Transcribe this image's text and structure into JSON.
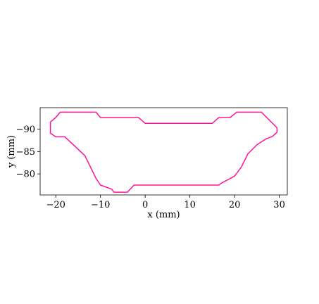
{
  "chart_data": {
    "type": "line",
    "title": "",
    "xlabel": "x (mm)",
    "ylabel": "y (mm)",
    "xlim": [
      -23.5,
      31.8
    ],
    "ylim": [
      -94.8,
      -75.3
    ],
    "y_inverted": true,
    "grid": false,
    "x_ticks": [
      -20,
      -10,
      0,
      10,
      20,
      30
    ],
    "x_tick_labels": [
      "−20",
      "−10",
      "0",
      "10",
      "20",
      "30"
    ],
    "y_ticks": [
      -90,
      -85,
      -80
    ],
    "y_tick_labels": [
      "−90",
      "−85",
      "−80"
    ],
    "series": [
      {
        "color": "#ff1493",
        "closed": true,
        "x": [
          -19.0,
          -11.0,
          -10.0,
          -1.5,
          0.0,
          15.0,
          16.5,
          19.0,
          20.5,
          26.0,
          29.5,
          29.5,
          28.5,
          27.0,
          25.0,
          23.0,
          21.5,
          20.0,
          17.0,
          16.5,
          -2.5,
          -4.0,
          -7.0,
          -7.5,
          -10.0,
          -11.0,
          -13.5,
          -18.0,
          -20.0,
          -21.2,
          -21.2,
          -20.0
        ],
        "y": [
          -93.8,
          -93.8,
          -92.6,
          -92.6,
          -91.3,
          -91.3,
          -92.6,
          -92.6,
          -93.8,
          -93.8,
          -90.3,
          -89.3,
          -88.4,
          -87.8,
          -86.5,
          -84.5,
          -81.5,
          -79.5,
          -77.9,
          -77.5,
          -77.5,
          -75.9,
          -75.9,
          -76.6,
          -77.5,
          -79.0,
          -84.1,
          -88.3,
          -88.3,
          -89.1,
          -91.6,
          -92.6
        ]
      }
    ]
  }
}
